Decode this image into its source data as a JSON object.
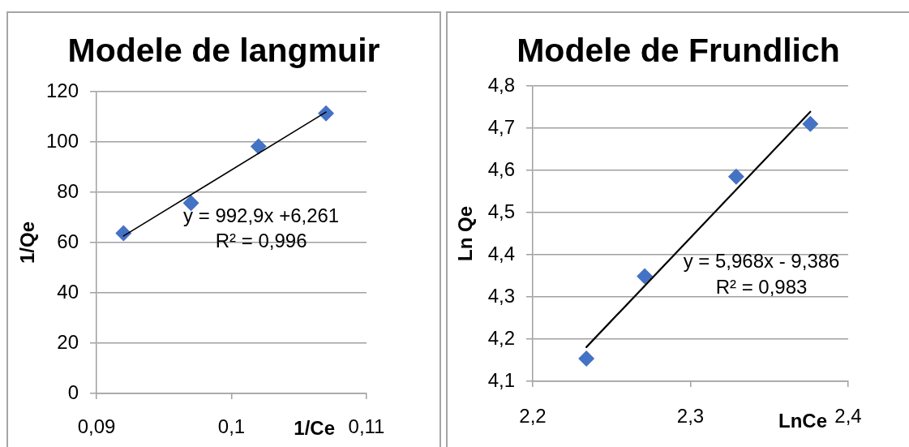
{
  "chart_data": [
    {
      "type": "scatter",
      "title": "Modele de langmuir",
      "xlabel": "1/Ce",
      "ylabel": "1/Qe",
      "xlim": [
        0.09,
        0.11
      ],
      "xticks": [
        {
          "value": 0.09,
          "label": "0,09"
        },
        {
          "value": 0.1,
          "label": "0,1"
        },
        {
          "value": 0.11,
          "label": "0,11"
        }
      ],
      "ylim": [
        0,
        120
      ],
      "yticks": [
        0,
        20,
        40,
        60,
        80,
        100,
        120
      ],
      "grid": "y",
      "legend": false,
      "series": [
        {
          "type": "scatter",
          "color": "#4472c4",
          "marker": "diamond",
          "x": [
            0.092,
            0.097,
            0.102,
            0.107
          ],
          "values": [
            63.7,
            75.7,
            98.2,
            111.4
          ]
        },
        {
          "type": "line",
          "color": "#000000",
          "marker": "none",
          "x": [
            0.092,
            0.107
          ],
          "values": [
            62.6,
            111.9
          ]
        }
      ],
      "annotations": [
        "y = 992,9x +6,261",
        "R² = 0,996"
      ]
    },
    {
      "type": "scatter",
      "title": "Modele de Frundlich",
      "xlabel": "LnCe",
      "ylabel": "Ln Qe",
      "xlim": [
        2.2,
        2.4
      ],
      "xticks": [
        {
          "value": 2.2,
          "label": "2,2"
        },
        {
          "value": 2.3,
          "label": "2,3"
        },
        {
          "value": 2.4,
          "label": "2,4"
        }
      ],
      "ylim": [
        4.1,
        4.8
      ],
      "yticks": [
        {
          "value": 4.1,
          "label": "4,1"
        },
        {
          "value": 4.2,
          "label": "4,2"
        },
        {
          "value": 4.3,
          "label": "4,3"
        },
        {
          "value": 4.4,
          "label": "4,4"
        },
        {
          "value": 4.5,
          "label": "4,5"
        },
        {
          "value": 4.6,
          "label": "4,6"
        },
        {
          "value": 4.7,
          "label": "4,7"
        },
        {
          "value": 4.8,
          "label": "4,8"
        }
      ],
      "grid": "y",
      "legend": false,
      "series": [
        {
          "type": "scatter",
          "color": "#4472c4",
          "marker": "diamond",
          "x": [
            2.234,
            2.271,
            2.329,
            2.376
          ],
          "values": [
            4.154,
            4.349,
            4.585,
            4.71
          ]
        },
        {
          "type": "line",
          "color": "#000000",
          "marker": "none",
          "x": [
            2.234,
            2.376
          ],
          "values": [
            4.181,
            4.739
          ]
        }
      ],
      "annotations": [
        "y = 5,968x - 9,386",
        "R² = 0,983"
      ]
    }
  ]
}
